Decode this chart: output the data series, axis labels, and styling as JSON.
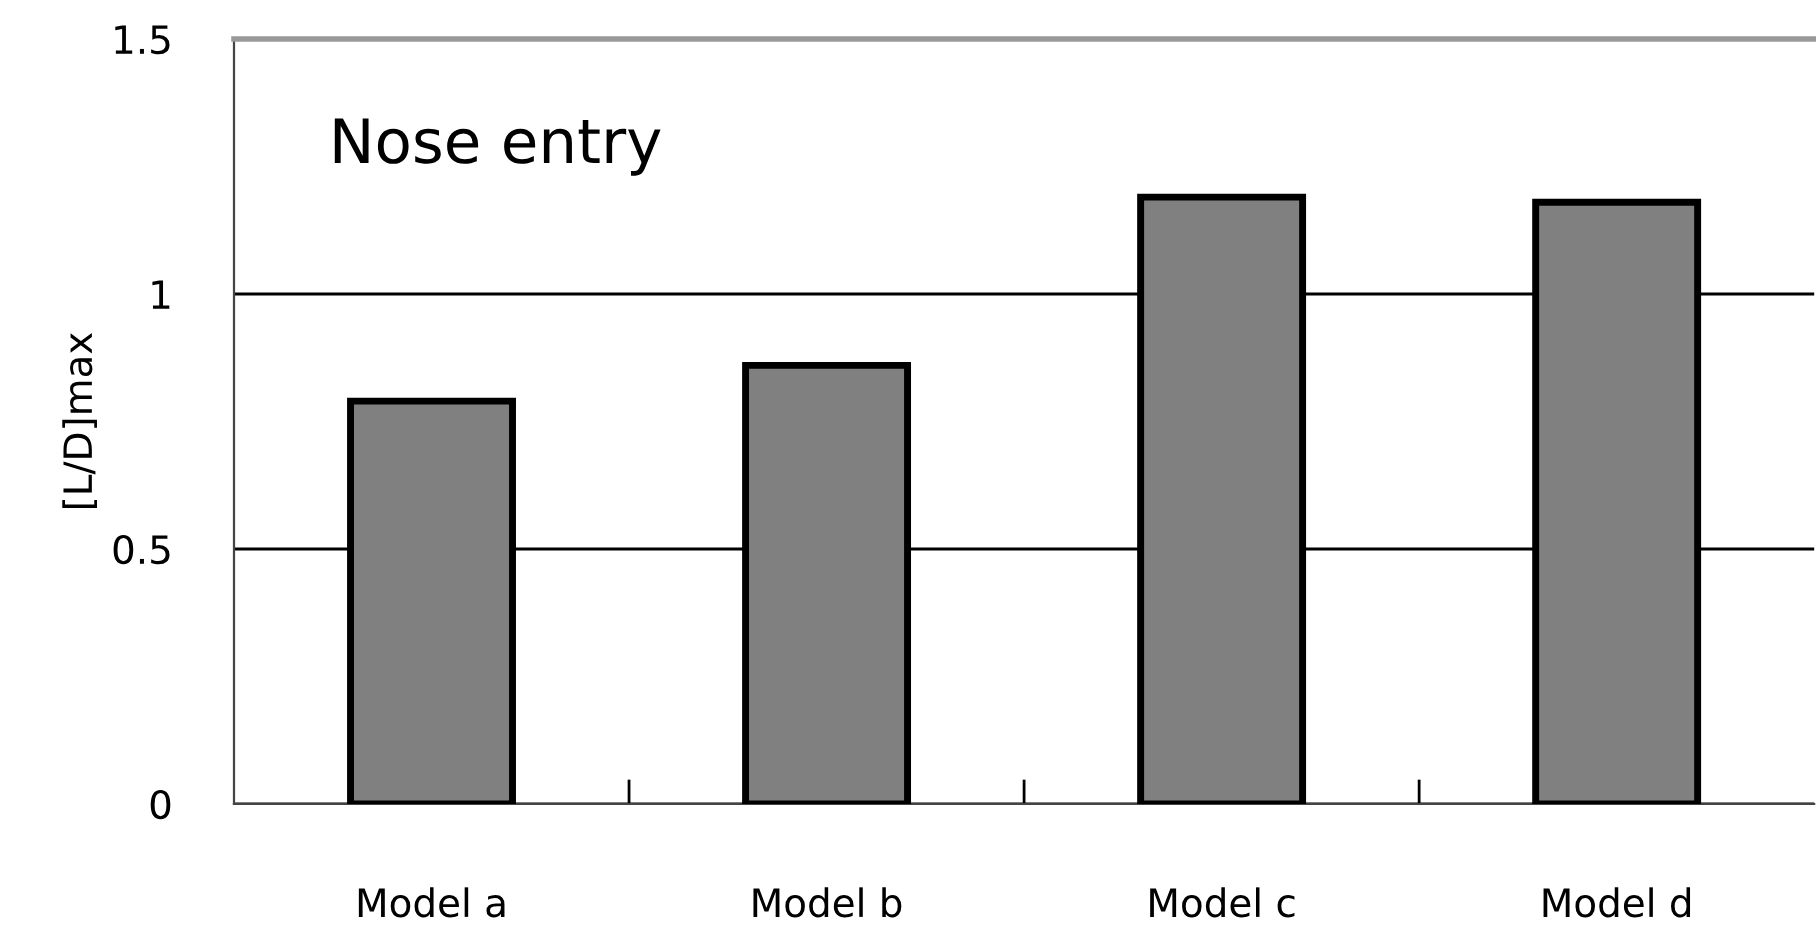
{
  "chart_data": {
    "type": "bar",
    "ylabel": "[L/D]max",
    "categories": [
      "Model a",
      "Model b",
      "Model c",
      "Model d"
    ],
    "values": [
      0.79,
      0.86,
      1.19,
      1.18
    ],
    "color": "#808080",
    "ylim": [
      0,
      1.5
    ],
    "yticks": [
      0,
      0.5,
      1,
      1.5
    ],
    "grid": "y",
    "annotations": [
      "Nose entry"
    ]
  }
}
